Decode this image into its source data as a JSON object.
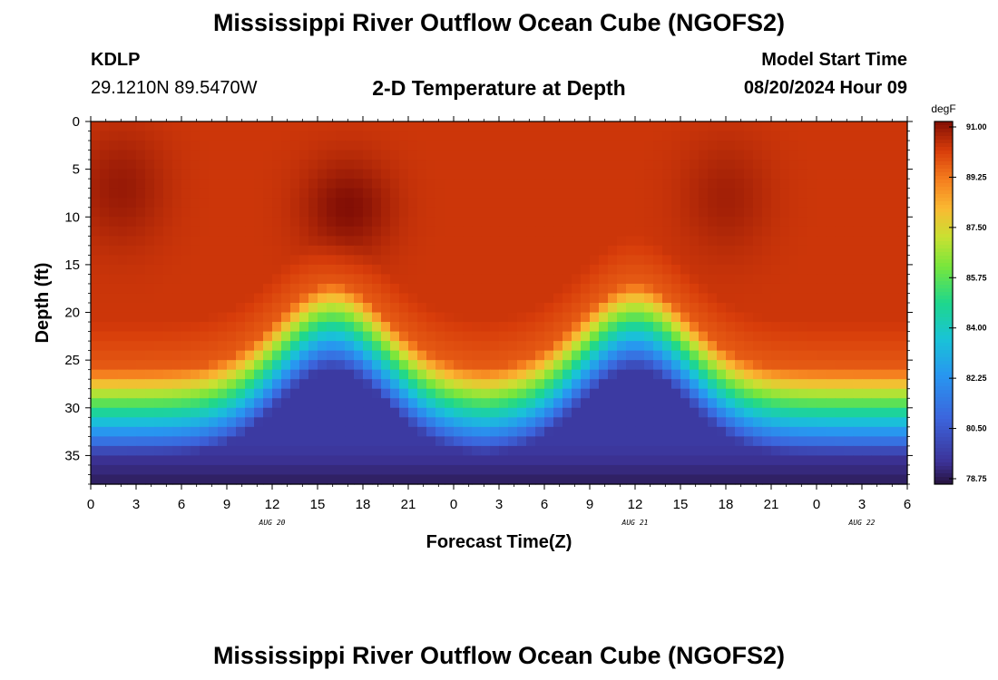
{
  "header": {
    "title": "Mississippi River Outflow Ocean Cube (NGOFS2)",
    "station_id": "KDLP",
    "coordinates": "29.1210N  89.5470W",
    "subtitle": "2-D Temperature at Depth",
    "model_start_label": "Model Start Time",
    "model_start_value": "08/20/2024 Hour 09"
  },
  "footer": {
    "title": "Mississippi River Outflow Ocean Cube (NGOFS2)"
  },
  "chart_data": {
    "type": "heatmap",
    "title": "2-D Temperature at Depth",
    "xlabel": "Forecast Time(Z)",
    "ylabel": "Depth (ft)",
    "x_tick_labels": [
      "0",
      "3",
      "6",
      "9",
      "12",
      "15",
      "18",
      "21",
      "0",
      "3",
      "6",
      "9",
      "12",
      "15",
      "18",
      "21",
      "0",
      "3",
      "6"
    ],
    "x_range_hours": [
      0,
      54
    ],
    "date_labels": [
      {
        "label": "AUG 20",
        "hour": 12
      },
      {
        "label": "AUG 21",
        "hour": 36
      },
      {
        "label": "AUG 22",
        "hour": 51
      }
    ],
    "y_ticks": [
      0,
      5,
      10,
      15,
      20,
      25,
      30,
      35
    ],
    "y_range_ft": [
      0,
      38
    ],
    "colorbar": {
      "unit": "degF",
      "min": 78.75,
      "max": 91.0,
      "tick_labels": [
        "91.00",
        "89.25",
        "87.50",
        "85.75",
        "84.00",
        "82.25",
        "80.50",
        "78.75"
      ]
    },
    "description_values": {
      "surface_temp_range_degF": [
        89.5,
        91.0
      ],
      "thermocline_depth_ft_min": 17,
      "thermocline_depth_ft_max": 26,
      "thermocline_shallowest_hours": [
        16,
        36
      ],
      "bottom_temp_degF": 78.75
    }
  }
}
